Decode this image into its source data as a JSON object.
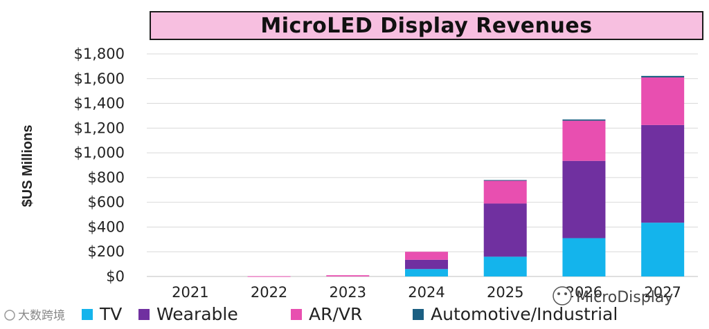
{
  "chart_data": {
    "type": "bar",
    "stacked": true,
    "title": "MicroLED Display Revenues",
    "xlabel": "",
    "ylabel": "$US Millions",
    "categories": [
      "2021",
      "2022",
      "2023",
      "2024",
      "2025",
      "2026",
      "2027"
    ],
    "series": [
      {
        "name": "TV",
        "color": "#14b4ec",
        "values": [
          0,
          0,
          0,
          60,
          160,
          310,
          435
        ]
      },
      {
        "name": "Wearable",
        "color": "#7030a0",
        "values": [
          0,
          0,
          0,
          75,
          430,
          625,
          790
        ]
      },
      {
        "name": "AR/VR",
        "color": "#e84fb0",
        "values": [
          0,
          2,
          10,
          65,
          185,
          325,
          385
        ]
      },
      {
        "name": "Automotive/Industrial",
        "color": "#1b5f82",
        "values": [
          0,
          0,
          0,
          0,
          5,
          10,
          12
        ]
      }
    ],
    "ylim": [
      0,
      1800
    ],
    "yticks": [
      0,
      200,
      400,
      600,
      800,
      1000,
      1200,
      1400,
      1600,
      1800
    ],
    "ytick_labels": [
      "$0",
      "$200",
      "$400",
      "$600",
      "$800",
      "$1,000",
      "$1,200",
      "$1,400",
      "$1,600",
      "$1,800"
    ],
    "grid": true,
    "legend_position": "bottom"
  },
  "watermarks": {
    "left": "大数跨境",
    "right": "MicroDisplay"
  }
}
